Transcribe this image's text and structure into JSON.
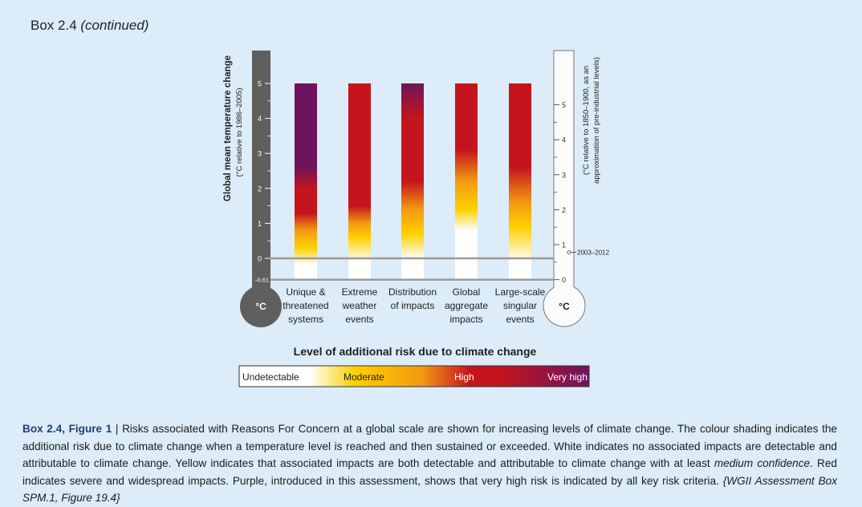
{
  "header": {
    "box_label": "Box 2.4",
    "continued": "(continued)"
  },
  "colors": {
    "background": "#dcecf8",
    "dark_thermometer": "#5f5f5f",
    "light_thermometer": "#fbfbfb",
    "reference_line": "#9a9a9a",
    "white": "#ffffff",
    "yellow": "#fdd000",
    "orange": "#f39a12",
    "red": "#c5141d",
    "purple": "#6e145c"
  },
  "chart_data": {
    "type": "bar",
    "left_axis": {
      "title": "Global mean temperature change",
      "subtitle": "(°C relative to 1986–2005)",
      "ticks": [
        "5",
        "4",
        "3",
        "2",
        "1",
        "0"
      ],
      "min_label": "-0.61",
      "range": [
        -0.61,
        5.65
      ],
      "unit": "°C"
    },
    "right_axis": {
      "subtitle_line1": "(°C relative to 1850–1900, as an",
      "subtitle_line2": "approximation of pre-industrial levels)",
      "ticks": [
        "5",
        "4",
        "3",
        "2",
        "1",
        "0"
      ],
      "unit": "°C",
      "offset": 0.61,
      "annotation": "2003–2012",
      "annotation_value": 0.78
    },
    "reference_lines": [
      0,
      -0.61
    ],
    "categories": [
      "Unique & threatened systems",
      "Extreme weather events",
      "Distribution of impacts",
      "Global aggregate impacts",
      "Large-scale singular events"
    ],
    "category_lines": [
      [
        "Unique &",
        "threatened",
        "systems"
      ],
      [
        "Extreme",
        "weather",
        "events"
      ],
      [
        "Distribution",
        "of impacts"
      ],
      [
        "Global",
        "aggregate",
        "impacts"
      ],
      [
        "Large-scale",
        "singular",
        "events"
      ]
    ],
    "bar_range": [
      -0.61,
      5
    ],
    "risk_transitions": [
      [
        {
          "t": -0.61,
          "c": "white"
        },
        {
          "t": -0.2,
          "c": "white"
        },
        {
          "t": 0.3,
          "c": "yellow"
        },
        {
          "t": 0.8,
          "c": "orange"
        },
        {
          "t": 1.3,
          "c": "red"
        },
        {
          "t": 2.0,
          "c": "red"
        },
        {
          "t": 2.6,
          "c": "purple"
        },
        {
          "t": 5,
          "c": "purple"
        }
      ],
      [
        {
          "t": -0.61,
          "c": "white"
        },
        {
          "t": -0.1,
          "c": "white"
        },
        {
          "t": 0.6,
          "c": "yellow"
        },
        {
          "t": 1.0,
          "c": "orange"
        },
        {
          "t": 1.5,
          "c": "red"
        },
        {
          "t": 5,
          "c": "red"
        }
      ],
      [
        {
          "t": -0.61,
          "c": "white"
        },
        {
          "t": 0.0,
          "c": "white"
        },
        {
          "t": 0.7,
          "c": "yellow"
        },
        {
          "t": 1.4,
          "c": "orange"
        },
        {
          "t": 2.2,
          "c": "red"
        },
        {
          "t": 4.0,
          "c": "red"
        },
        {
          "t": 5,
          "c": "purple"
        }
      ],
      [
        {
          "t": -0.61,
          "c": "white"
        },
        {
          "t": 0.8,
          "c": "white"
        },
        {
          "t": 1.4,
          "c": "yellow"
        },
        {
          "t": 2.2,
          "c": "orange"
        },
        {
          "t": 3.1,
          "c": "red"
        },
        {
          "t": 5,
          "c": "red"
        }
      ],
      [
        {
          "t": -0.61,
          "c": "white"
        },
        {
          "t": -0.1,
          "c": "white"
        },
        {
          "t": 0.9,
          "c": "yellow"
        },
        {
          "t": 1.6,
          "c": "orange"
        },
        {
          "t": 2.6,
          "c": "red"
        },
        {
          "t": 5,
          "c": "red"
        }
      ]
    ],
    "legend": {
      "title": "Level of additional risk due to climate change",
      "levels": [
        "Undetectable",
        "Moderate",
        "High",
        "Very high"
      ]
    }
  },
  "caption": {
    "label": "Box 2.4, Figure 1",
    "separator": " | ",
    "text1": "Risks associated with Reasons For Concern at a global scale are shown for increasing levels of climate change. The colour shading indicates the additional risk due to climate change when a temperature level is reached and then sustained or exceeded. White indicates no associated impacts are detectable and attributable to climate change. Yellow indicates that associated impacts are both detectable and attributable to climate change with at least ",
    "emphasis": "medium confidence",
    "text2": ". Red indicates severe and widespread impacts. Purple, introduced in this assessment, shows that very high risk is indicated by all key risk criteria. ",
    "reference": "{WGII Assessment Box SPM.1, Figure 19.4}"
  }
}
